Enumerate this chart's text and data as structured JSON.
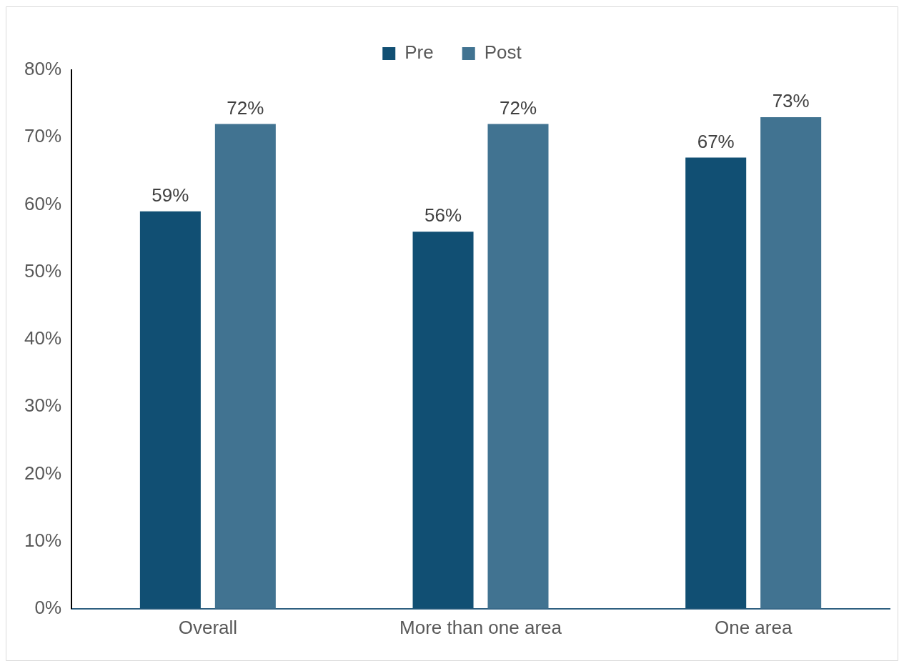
{
  "chart_data": {
    "type": "bar",
    "categories": [
      "Overall",
      "More than one area",
      "One area"
    ],
    "series": [
      {
        "name": "Pre",
        "color": "#114f73",
        "values": [
          59,
          56,
          67
        ],
        "value_labels": [
          "59%",
          "56%",
          "67%"
        ]
      },
      {
        "name": "Post",
        "color": "#417391",
        "values": [
          72,
          72,
          73
        ],
        "value_labels": [
          "72%",
          "72%",
          "73%"
        ]
      }
    ],
    "ylim": [
      0,
      80
    ],
    "yticks": [
      {
        "value": 0,
        "label": "0%"
      },
      {
        "value": 10,
        "label": "10%"
      },
      {
        "value": 20,
        "label": "20%"
      },
      {
        "value": 30,
        "label": "30%"
      },
      {
        "value": 40,
        "label": "40%"
      },
      {
        "value": 50,
        "label": "50%"
      },
      {
        "value": 60,
        "label": "60%"
      },
      {
        "value": 70,
        "label": "70%"
      },
      {
        "value": 80,
        "label": "80%"
      }
    ],
    "grid": false,
    "legend": "top"
  }
}
